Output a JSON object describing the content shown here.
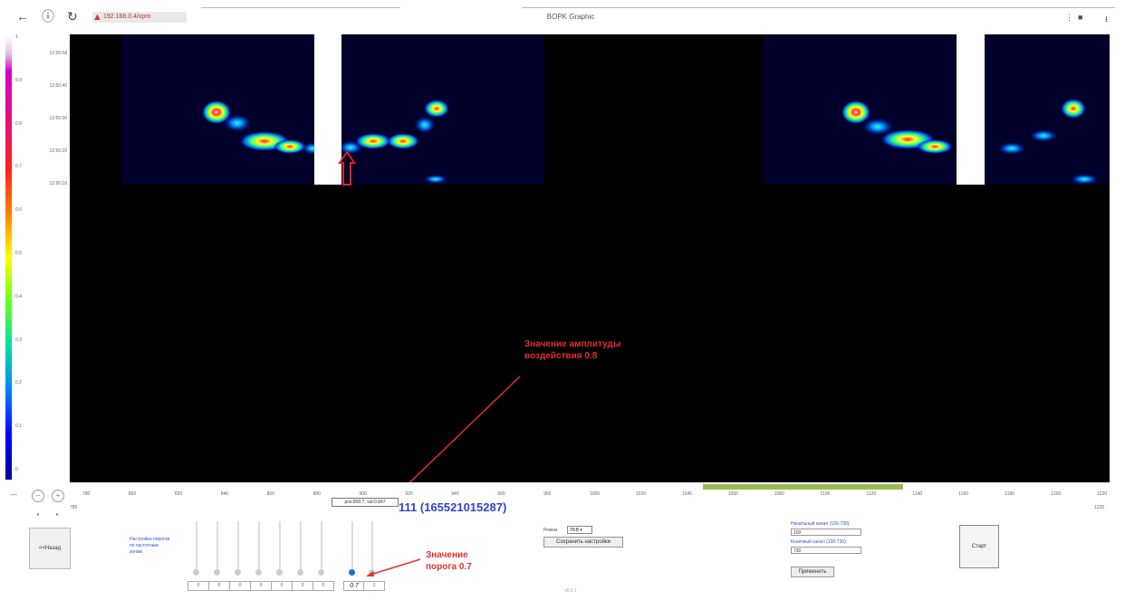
{
  "browser": {
    "url": "192.168.0.4/xpro",
    "title": "BOPK Graphic"
  },
  "colorbar": {
    "ticks": [
      "1",
      "0.9",
      "0.8",
      "0.7",
      "0.6",
      "0.5",
      "0.4",
      "0.3",
      "0.2",
      "0.1",
      "0"
    ]
  },
  "y_axis": {
    "labels": [
      "12:50:58",
      "12:50:40",
      "12:50:30",
      "12:50:20",
      "12:50:10"
    ]
  },
  "x_axis": {
    "ticks": [
      "780",
      "800",
      "820",
      "840",
      "860",
      "880",
      "900",
      "920",
      "940",
      "960",
      "980",
      "1000",
      "1020",
      "1040",
      "1060",
      "1080",
      "1100",
      "1120",
      "1140",
      "1160",
      "1180",
      "1200",
      "1220"
    ],
    "left_label": "780",
    "right_label": "1230"
  },
  "tooltip": "pos:800.7, val:0.847",
  "position_value": "111 (165521015287)",
  "annotations": {
    "amplitude": "Значение амплитуды воздействия 0.8",
    "threshold": "Значение порога 0.7"
  },
  "controls": {
    "back_label": "<<Назад",
    "side_text": "Настройка порогов по частотным зонам",
    "slider_values": [
      "0",
      "0",
      "0",
      "0",
      "0",
      "0",
      "0",
      "0.7",
      "1"
    ],
    "regime_label": "Режим",
    "regime_value": "ЛБВ",
    "save_label": "Сохранить настройки",
    "start_channel_label": "Начальный канал (100-730):",
    "start_channel_value": "100",
    "end_channel_label": "Конечный канал (100-730):",
    "end_channel_value": "730",
    "apply_label": "Применить",
    "start_label": "Старт"
  },
  "footer": "v0.0.1",
  "colors": {
    "accent_blue": "#3344cc",
    "annotation_red": "#e03030",
    "range_green": "#9aba55"
  }
}
